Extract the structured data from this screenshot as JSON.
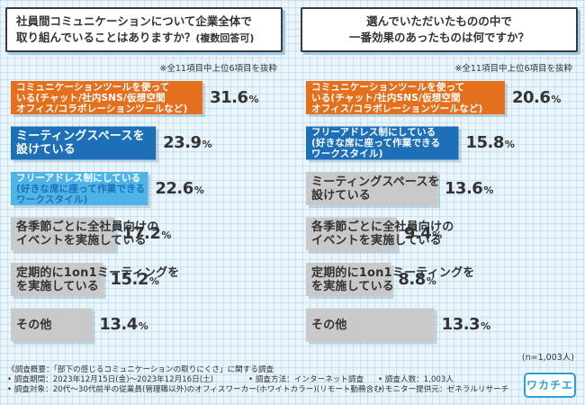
{
  "left": {
    "question_lines": [
      "社員間コミュニケーションについて企業全体で",
      "取り組んでいることはありますか？"
    ],
    "question_suffix": "(複数回答可)",
    "note": "※全11項目中上位6項目を抜粋"
  },
  "right": {
    "question_lines": [
      "選んでいただいたものの中で",
      "一番効果のあったものは何ですか？"
    ],
    "note": "※全11項目中上位6項目を抜粋"
  },
  "sample_size": "(n=1,003人)",
  "footer": {
    "title": "《調査概要：「部下の感じるコミュニケーションの取りにくさ」に関する調査",
    "period": "• 調査期間：2023年12月15日(金)〜2023年12月16日(土)",
    "method": "• 調査方法：インターネット調査",
    "count": "• 調査人数：1,003人",
    "target": "• 調査対象：20代〜30代前半の従業員(管理職以外)のオフィスワーカー(ホワイトカラー)(リモート勤務含む)",
    "provider": "• モニター提供元：ゼネラルリサーチ"
  },
  "logo": "ワカチエ",
  "colors": {
    "orange": "#e4701e",
    "blue": "#1d6fb8",
    "lightblue": "#4eb4e8",
    "gray": "#c9c9c9"
  },
  "chart_data": [
    {
      "type": "bar",
      "orientation": "horizontal",
      "categories": [
        "コミュニケーションツールを使っている(チャット/社内SNS/仮想空間オフィス/コラボレーションツールなど)",
        "ミーティングスペースを設けている",
        "フリーアドレス制にしている(好きな席に座って作業できるワークスタイル)",
        "各季節ごとに全社員向けのイベントを実施している",
        "定期的に1on1ミーティングを実施している",
        "その他"
      ],
      "label_lines": [
        [
          "コミュニケーションツールを使って",
          "いる(チャット/社内SNS/仮想空間",
          "オフィス/コラボレーションツールなど)"
        ],
        [
          "ミーティングスペースを",
          "設けている"
        ],
        [
          "フリーアドレス制にしている",
          "(好きな席に座って作業できる",
          "ワークスタイル)"
        ],
        [
          "各季節ごとに全社員向けの",
          "イベントを実施している"
        ],
        [
          "定期的に1on1ミーティングを",
          "を実施している"
        ],
        [
          "その他"
        ]
      ],
      "values": [
        31.6,
        23.9,
        22.6,
        17.2,
        15.2,
        13.4
      ],
      "value_labels": [
        "31.6",
        "23.9",
        "22.6",
        "17.2",
        "15.2",
        "13.4"
      ],
      "unit": "%",
      "bar_colors": [
        "#e4701e",
        "#1d6fb8",
        "#4eb4e8",
        "#c9c9c9",
        "#c9c9c9",
        "#c9c9c9"
      ],
      "xlim": [
        0,
        35
      ]
    },
    {
      "type": "bar",
      "orientation": "horizontal",
      "categories": [
        "コミュニケーションツールを使っている(チャット/社内SNS/仮想空間オフィス/コラボレーションツールなど)",
        "フリーアドレス制にしている(好きな席に座って作業できるワークスタイル)",
        "ミーティングスペースを設けている",
        "各季節ごとに全社員向けのイベントを実施している",
        "定期的に1on1ミーティングを実施している",
        "その他"
      ],
      "label_lines": [
        [
          "コミュニケーションツールを使って",
          "いる(チャット/社内SNS/仮想空間",
          "オフィス/コラボレーションツールなど)"
        ],
        [
          "フリーアドレス制にしている",
          "(好きな席に座って作業できる",
          "ワークスタイル)"
        ],
        [
          "ミーティングスペースを",
          "設けている"
        ],
        [
          "各季節ごとに全社員向けの",
          "イベントを実施している"
        ],
        [
          "定期的に1on1ミーティングを",
          "を実施している"
        ],
        [
          "その他"
        ]
      ],
      "values": [
        20.6,
        15.8,
        13.6,
        9.4,
        8.8,
        13.3
      ],
      "value_labels": [
        "20.6",
        "15.8",
        "13.6",
        "9.4",
        "8.8",
        "13.3"
      ],
      "unit": "%",
      "bar_colors": [
        "#e4701e",
        "#1d6fb8",
        "#c9c9c9",
        "#c9c9c9",
        "#c9c9c9",
        "#c9c9c9"
      ],
      "xlim": [
        0,
        22
      ]
    }
  ]
}
